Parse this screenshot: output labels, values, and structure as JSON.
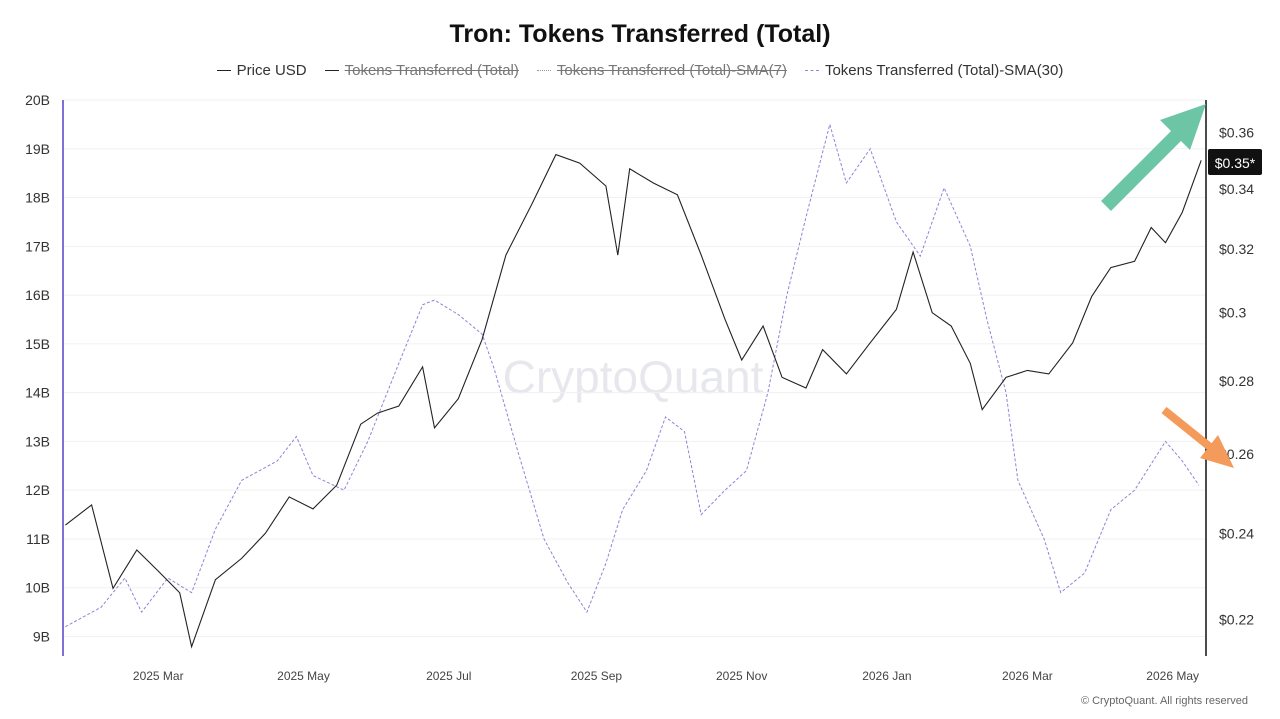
{
  "chart_data": {
    "type": "line",
    "title": "Tron: Tokens Transferred (Total)",
    "watermark": "CryptoQuant",
    "footer": "© CryptoQuant. All rights reserved",
    "legend": [
      {
        "label": "Price USD",
        "style": "solid",
        "color": "#222222",
        "enabled": true
      },
      {
        "label": "Tokens Transferred (Total)",
        "style": "solid",
        "color": "#555555",
        "enabled": false
      },
      {
        "label": "Tokens Transferred (Total)-SMA(7)",
        "style": "dotted",
        "color": "#999999",
        "enabled": false
      },
      {
        "label": "Tokens Transferred (Total)-SMA(30)",
        "style": "dashed",
        "color": "#8a86d8",
        "enabled": true
      }
    ],
    "x_ticks": [
      "2025 Mar",
      "2025 May",
      "2025 Jul",
      "2025 Sep",
      "2025 Nov",
      "2026 Jan",
      "2026 Mar",
      "2026 May"
    ],
    "x_range": [
      "2025-01-20",
      "2026-05-15"
    ],
    "left_axis": {
      "ticks": [
        "20B",
        "19B",
        "18B",
        "17B",
        "16B",
        "15B",
        "14B",
        "13B",
        "12B",
        "11B",
        "10B",
        "9B"
      ],
      "range": [
        8.6,
        20.0
      ]
    },
    "right_axis": {
      "ticks": [
        "$0.36",
        "$0.34",
        "$0.32",
        "$0.3",
        "$0.28",
        "$0.26",
        "$0.24",
        "$0.22"
      ],
      "scale": "log",
      "range": [
        0.212,
        0.372
      ]
    },
    "price_label": "$0.35*",
    "arrow_colors": {
      "up": "#6cc6a6",
      "down": "#f49a5a"
    },
    "series": [
      {
        "name": "Price USD",
        "axis": "right",
        "color": "#222222",
        "points": [
          [
            "2025-01-21",
            0.242
          ],
          [
            "2025-02-01",
            0.247
          ],
          [
            "2025-02-10",
            0.227
          ],
          [
            "2025-02-20",
            0.236
          ],
          [
            "2025-03-01",
            0.231
          ],
          [
            "2025-03-10",
            0.226
          ],
          [
            "2025-03-15",
            0.214
          ],
          [
            "2025-03-25",
            0.229
          ],
          [
            "2025-04-05",
            0.234
          ],
          [
            "2025-04-15",
            0.24
          ],
          [
            "2025-04-25",
            0.249
          ],
          [
            "2025-05-05",
            0.246
          ],
          [
            "2025-05-15",
            0.252
          ],
          [
            "2025-05-25",
            0.268
          ],
          [
            "2025-06-01",
            0.271
          ],
          [
            "2025-06-10",
            0.273
          ],
          [
            "2025-06-20",
            0.284
          ],
          [
            "2025-06-25",
            0.267
          ],
          [
            "2025-07-05",
            0.275
          ],
          [
            "2025-07-15",
            0.292
          ],
          [
            "2025-07-25",
            0.318
          ],
          [
            "2025-08-05",
            0.335
          ],
          [
            "2025-08-15",
            0.352
          ],
          [
            "2025-08-25",
            0.349
          ],
          [
            "2025-09-05",
            0.341
          ],
          [
            "2025-09-10",
            0.318
          ],
          [
            "2025-09-15",
            0.347
          ],
          [
            "2025-09-25",
            0.342
          ],
          [
            "2025-10-05",
            0.338
          ],
          [
            "2025-10-15",
            0.318
          ],
          [
            "2025-10-25",
            0.298
          ],
          [
            "2025-11-01",
            0.286
          ],
          [
            "2025-11-10",
            0.296
          ],
          [
            "2025-11-18",
            0.281
          ],
          [
            "2025-11-28",
            0.278
          ],
          [
            "2025-12-05",
            0.289
          ],
          [
            "2025-12-15",
            0.282
          ],
          [
            "2025-12-25",
            0.291
          ],
          [
            "2026-01-05",
            0.301
          ],
          [
            "2026-01-12",
            0.319
          ],
          [
            "2026-01-20",
            0.3
          ],
          [
            "2026-01-28",
            0.296
          ],
          [
            "2026-02-05",
            0.285
          ],
          [
            "2026-02-10",
            0.272
          ],
          [
            "2026-02-20",
            0.281
          ],
          [
            "2026-03-01",
            0.283
          ],
          [
            "2026-03-10",
            0.282
          ],
          [
            "2026-03-20",
            0.291
          ],
          [
            "2026-03-28",
            0.305
          ],
          [
            "2026-04-05",
            0.314
          ],
          [
            "2026-04-15",
            0.316
          ],
          [
            "2026-04-22",
            0.327
          ],
          [
            "2026-04-28",
            0.322
          ],
          [
            "2026-05-05",
            0.332
          ],
          [
            "2026-05-13",
            0.35
          ]
        ]
      },
      {
        "name": "Tokens Transferred (Total)-SMA(30)",
        "axis": "left",
        "color": "#8a86d8",
        "points": [
          [
            "2025-01-21",
            9.2
          ],
          [
            "2025-02-05",
            9.6
          ],
          [
            "2025-02-15",
            10.2
          ],
          [
            "2025-02-22",
            9.5
          ],
          [
            "2025-03-05",
            10.2
          ],
          [
            "2025-03-15",
            9.9
          ],
          [
            "2025-03-25",
            11.2
          ],
          [
            "2025-04-05",
            12.2
          ],
          [
            "2025-04-20",
            12.6
          ],
          [
            "2025-04-28",
            13.1
          ],
          [
            "2025-05-05",
            12.3
          ],
          [
            "2025-05-18",
            12.0
          ],
          [
            "2025-05-28",
            13.0
          ],
          [
            "2025-06-10",
            14.6
          ],
          [
            "2025-06-20",
            15.8
          ],
          [
            "2025-06-25",
            15.9
          ],
          [
            "2025-07-05",
            15.6
          ],
          [
            "2025-07-15",
            15.2
          ],
          [
            "2025-07-20",
            14.5
          ],
          [
            "2025-07-30",
            12.8
          ],
          [
            "2025-08-10",
            11.0
          ],
          [
            "2025-08-20",
            10.1
          ],
          [
            "2025-08-28",
            9.5
          ],
          [
            "2025-09-05",
            10.5
          ],
          [
            "2025-09-12",
            11.6
          ],
          [
            "2025-09-22",
            12.4
          ],
          [
            "2025-09-30",
            13.5
          ],
          [
            "2025-10-08",
            13.2
          ],
          [
            "2025-10-15",
            11.5
          ],
          [
            "2025-10-25",
            12.0
          ],
          [
            "2025-11-03",
            12.4
          ],
          [
            "2025-11-12",
            14.0
          ],
          [
            "2025-11-20",
            16.0
          ],
          [
            "2025-11-28",
            17.6
          ],
          [
            "2025-12-08",
            19.5
          ],
          [
            "2025-12-15",
            18.3
          ],
          [
            "2025-12-25",
            19.0
          ],
          [
            "2026-01-05",
            17.5
          ],
          [
            "2026-01-15",
            16.8
          ],
          [
            "2026-01-25",
            18.2
          ],
          [
            "2026-02-05",
            17.0
          ],
          [
            "2026-02-12",
            15.5
          ],
          [
            "2026-02-20",
            14.0
          ],
          [
            "2026-02-25",
            12.2
          ],
          [
            "2026-03-08",
            11.0
          ],
          [
            "2026-03-15",
            9.9
          ],
          [
            "2026-03-25",
            10.3
          ],
          [
            "2026-04-05",
            11.6
          ],
          [
            "2026-04-15",
            12.0
          ],
          [
            "2026-04-28",
            13.0
          ],
          [
            "2026-05-05",
            12.6
          ],
          [
            "2026-05-12",
            12.1
          ]
        ]
      }
    ]
  }
}
